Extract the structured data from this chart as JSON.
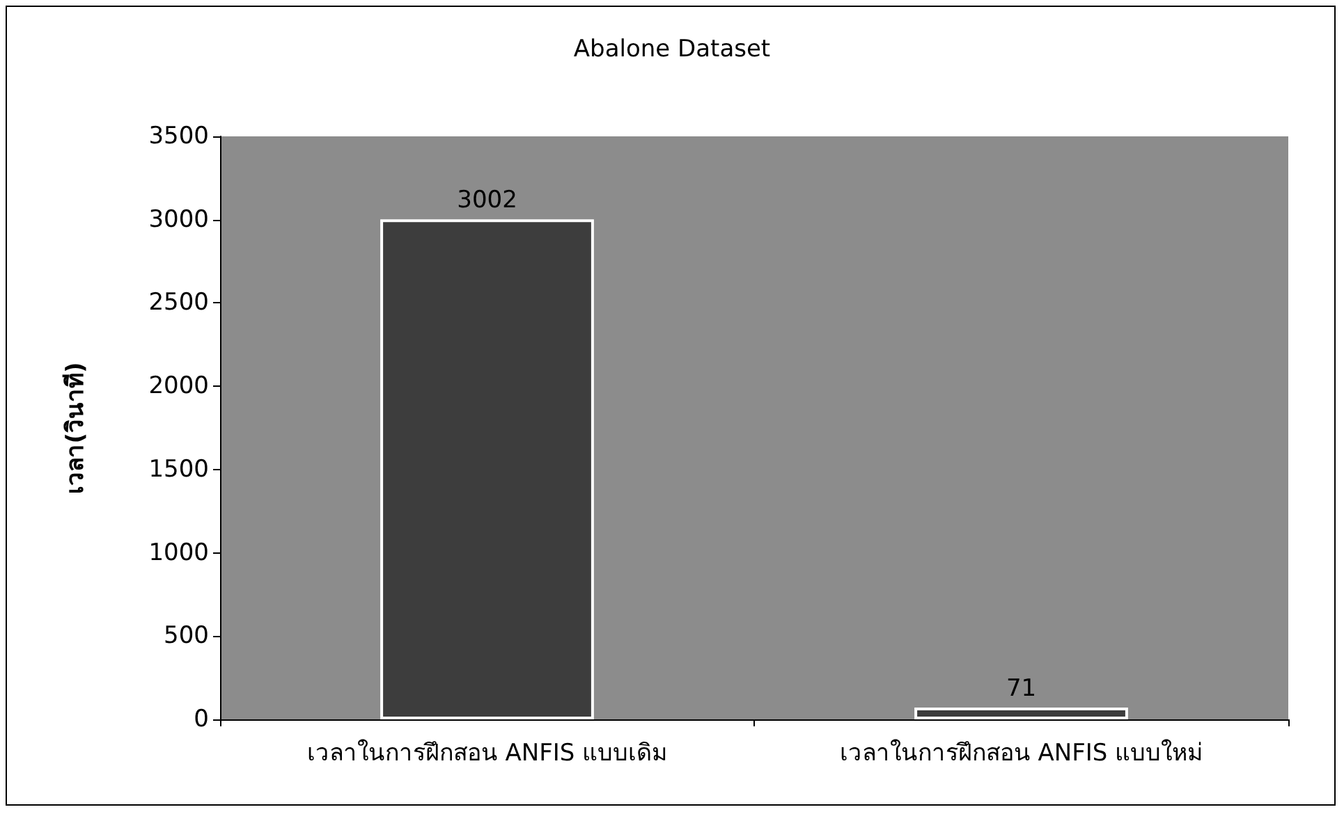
{
  "chart_data": {
    "type": "bar",
    "title": "Abalone Dataset",
    "ylabel": "เวลา(วินาที)",
    "categories": [
      "เวลาในการฝึกสอน ANFIS แบบเดิม",
      "เวลาในการฝึกสอน ANFIS แบบใหม่"
    ],
    "values": [
      3002,
      71
    ],
    "color": "#3d3d3d",
    "ylim": [
      0,
      3500
    ],
    "yticks": [
      0,
      500,
      1000,
      1500,
      2000,
      2500,
      3000,
      3500
    ],
    "grid": false,
    "data_labels": true
  }
}
